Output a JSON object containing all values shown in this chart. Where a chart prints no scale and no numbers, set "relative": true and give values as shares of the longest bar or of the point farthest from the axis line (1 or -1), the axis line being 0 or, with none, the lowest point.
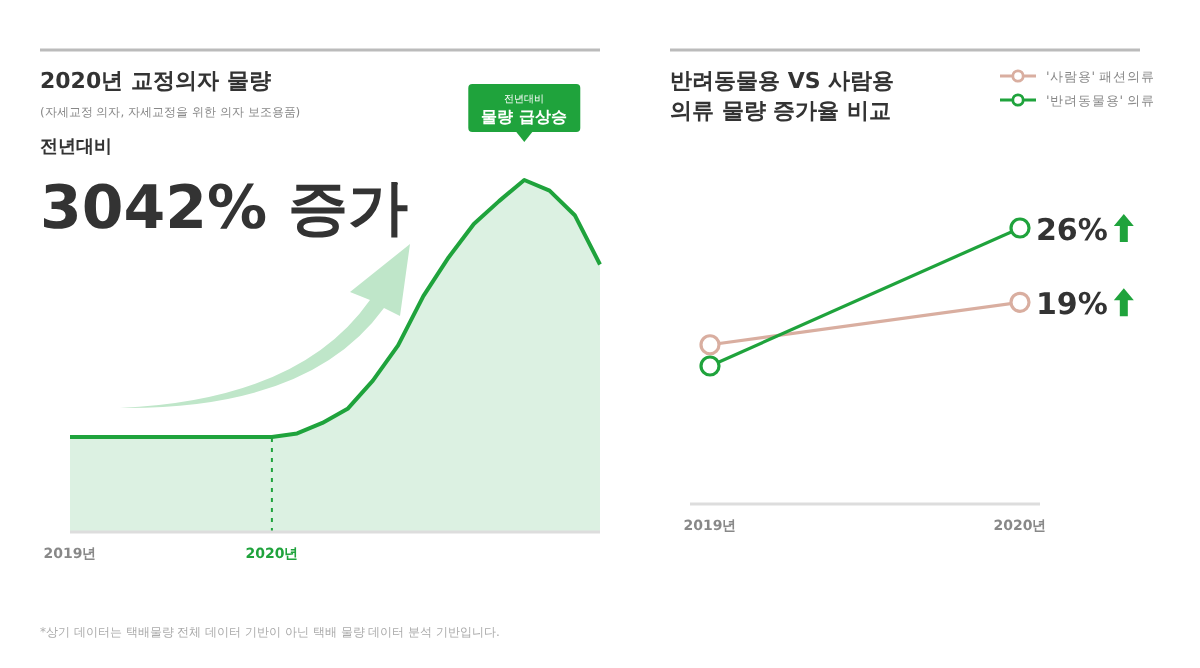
{
  "chart_data": [
    {
      "type": "area",
      "title": "2020년 교정의자 물량",
      "subtitle": "(자세교정 의자, 자세교정을 위한 의자 보조용품)",
      "relative": true,
      "color": "#1fa33c",
      "categories": [
        "2019년",
        null,
        null,
        null,
        null,
        null,
        null,
        null,
        "2020년",
        null,
        null,
        null,
        null,
        null,
        null,
        null,
        null,
        null,
        null,
        null,
        null,
        null
      ],
      "values": [
        0.27,
        0.27,
        0.27,
        0.27,
        0.27,
        0.27,
        0.27,
        0.27,
        0.27,
        0.28,
        0.31,
        0.35,
        0.43,
        0.53,
        0.67,
        0.78,
        0.875,
        0.94,
        1.0,
        0.97,
        0.9,
        0.76
      ],
      "ref_lines": [
        {
          "axis": "x",
          "value": "2020년",
          "line_style": "dotted",
          "color": "#1fa33c"
        }
      ],
      "annotations": [
        "전년대비",
        "3042% 증가",
        "전년대비",
        "물량 급상승",
        "*상기 데이터는 택배물량 전체 데이터 기반이 아닌 택배 물량 데이터 분석 기반입니다."
      ]
    },
    {
      "type": "line",
      "title": "반려동물용 VS 사람용 의류 물량 증가율 비교",
      "legend": "top right",
      "marker": "circle",
      "categories": [
        "2019년",
        "2020년"
      ],
      "series": [
        {
          "name": "'사람용' 패션의류",
          "color": "#d9aea0",
          "values": [
            15,
            19
          ],
          "value_labels": [
            null,
            "19%"
          ]
        },
        {
          "name": "'반려동물용' 의류",
          "color": "#1fa33c",
          "values": [
            13,
            26
          ],
          "value_labels": [
            null,
            "26%"
          ]
        }
      ]
    }
  ]
}
